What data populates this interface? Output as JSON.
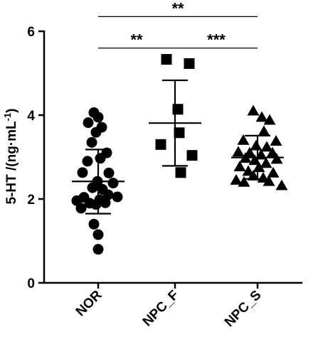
{
  "chart_data": {
    "type": "scatter",
    "ylabel_main": "5-HT /(ng·mL",
    "ylabel_sup": "-1",
    "ylabel_close": ")",
    "ylim": [
      0,
      6
    ],
    "yticks": [
      "0",
      "2",
      "4",
      "6"
    ],
    "categories": [
      "NOR",
      "NPC_F",
      "NPC_S"
    ],
    "series": [
      {
        "category": "NOR",
        "marker": "circle",
        "mean": 2.42,
        "sd_low": 1.65,
        "sd_high": 3.18,
        "points": [
          {
            "dx": -0.06,
            "y": 4.06
          },
          {
            "dx": 0.0,
            "y": 3.95
          },
          {
            "dx": -0.14,
            "y": 3.82
          },
          {
            "dx": 0.05,
            "y": 3.71
          },
          {
            "dx": -0.03,
            "y": 3.59
          },
          {
            "dx": -0.09,
            "y": 3.35
          },
          {
            "dx": 0.12,
            "y": 3.1
          },
          {
            "dx": 0.03,
            "y": 2.97
          },
          {
            "dx": -0.15,
            "y": 2.9
          },
          {
            "dx": -0.22,
            "y": 2.63
          },
          {
            "dx": 0.15,
            "y": 2.62
          },
          {
            "dx": -0.01,
            "y": 2.42
          },
          {
            "dx": 0.21,
            "y": 2.38
          },
          {
            "dx": -0.08,
            "y": 2.27
          },
          {
            "dx": 0.06,
            "y": 2.23
          },
          {
            "dx": 0.14,
            "y": 2.1
          },
          {
            "dx": 0.27,
            "y": 2.05
          },
          {
            "dx": -0.2,
            "y": 2.04
          },
          {
            "dx": -0.3,
            "y": 1.96
          },
          {
            "dx": 0.02,
            "y": 1.98
          },
          {
            "dx": -0.12,
            "y": 1.9
          },
          {
            "dx": 0.1,
            "y": 1.91
          },
          {
            "dx": -0.03,
            "y": 1.87
          },
          {
            "dx": -0.24,
            "y": 1.78
          },
          {
            "dx": -0.06,
            "y": 1.4
          },
          {
            "dx": 0.0,
            "y": 1.15
          },
          {
            "dx": 0.0,
            "y": 0.8
          }
        ]
      },
      {
        "category": "NPC_F",
        "marker": "square",
        "mean": 3.81,
        "sd_low": 2.79,
        "sd_high": 4.83,
        "points": [
          {
            "dx": -0.12,
            "y": 5.33
          },
          {
            "dx": 0.2,
            "y": 5.23
          },
          {
            "dx": 0.04,
            "y": 4.14
          },
          {
            "dx": 0.06,
            "y": 3.58
          },
          {
            "dx": -0.2,
            "y": 3.3
          },
          {
            "dx": 0.24,
            "y": 3.04
          },
          {
            "dx": 0.08,
            "y": 2.63
          }
        ]
      },
      {
        "category": "NPC_S",
        "marker": "triangle",
        "mean": 2.99,
        "sd_low": 2.48,
        "sd_high": 3.51,
        "points": [
          {
            "dx": -0.06,
            "y": 4.1
          },
          {
            "dx": 0.06,
            "y": 3.95
          },
          {
            "dx": 0.17,
            "y": 3.88
          },
          {
            "dx": 0.09,
            "y": 3.61
          },
          {
            "dx": -0.2,
            "y": 3.4
          },
          {
            "dx": 0.26,
            "y": 3.38
          },
          {
            "dx": -0.02,
            "y": 3.27
          },
          {
            "dx": 0.13,
            "y": 3.24
          },
          {
            "dx": -0.27,
            "y": 3.12
          },
          {
            "dx": -0.11,
            "y": 3.1
          },
          {
            "dx": 0.21,
            "y": 3.1
          },
          {
            "dx": 0.05,
            "y": 3.05
          },
          {
            "dx": -0.17,
            "y": 2.97
          },
          {
            "dx": 0.27,
            "y": 2.95
          },
          {
            "dx": -0.04,
            "y": 2.92
          },
          {
            "dx": 0.12,
            "y": 2.85
          },
          {
            "dx": -0.25,
            "y": 2.77
          },
          {
            "dx": 0.02,
            "y": 2.75
          },
          {
            "dx": -0.13,
            "y": 2.66
          },
          {
            "dx": 0.22,
            "y": 2.62
          },
          {
            "dx": -0.06,
            "y": 2.55
          },
          {
            "dx": 0.08,
            "y": 2.5
          },
          {
            "dx": -0.3,
            "y": 2.45
          },
          {
            "dx": 0.16,
            "y": 2.42
          },
          {
            "dx": -0.19,
            "y": 2.4
          },
          {
            "dx": 0.34,
            "y": 2.32
          }
        ]
      }
    ],
    "significance": [
      {
        "from": "NOR",
        "to": "NPC_S",
        "y": 6.35,
        "label": "**"
      },
      {
        "from": "NOR",
        "to": "NPC_F",
        "y": 5.6,
        "label": "**"
      },
      {
        "from": "NPC_F",
        "to": "NPC_S",
        "y": 5.6,
        "label": "***"
      }
    ],
    "colors": {
      "ink": "#000000"
    }
  }
}
